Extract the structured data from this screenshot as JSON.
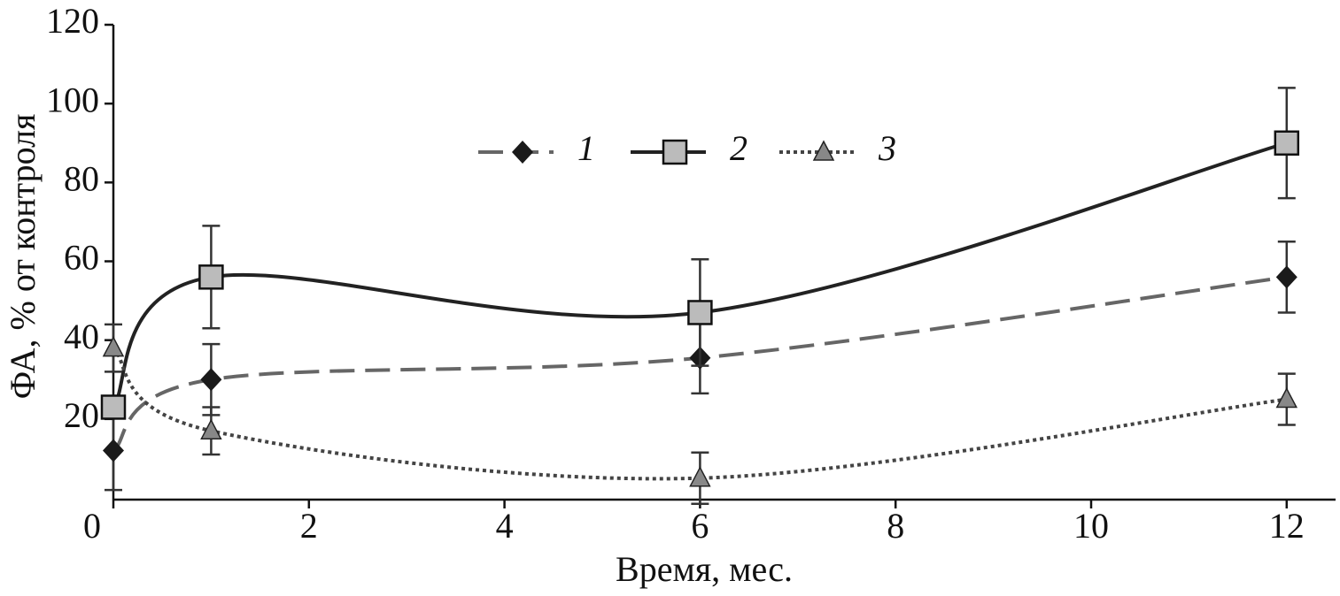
{
  "chart_data": {
    "type": "line",
    "x_label": "Время, мес.",
    "y_label": "ФА, % от контроля",
    "x": [
      0,
      1,
      6,
      12
    ],
    "xlim": [
      0,
      12.5
    ],
    "ylim": [
      0,
      120
    ],
    "xticks": [
      0,
      2,
      4,
      6,
      8,
      10,
      12
    ],
    "yticks": [
      20,
      40,
      60,
      80,
      100,
      120
    ],
    "legend_position": "top",
    "series": [
      {
        "name": "1",
        "color": "#666666",
        "marker_color": "#1a1a1a",
        "marker": "diamond",
        "line_style": "dashed",
        "values": [
          12,
          30,
          35.5,
          56
        ],
        "errors": [
          10,
          9,
          9,
          9
        ]
      },
      {
        "name": "2",
        "color": "#222222",
        "marker_color": "#bbbbbb",
        "marker": "square",
        "line_style": "solid",
        "values": [
          23,
          56,
          47,
          90
        ],
        "errors": [
          null,
          13,
          13.5,
          14
        ]
      },
      {
        "name": "3",
        "color": "#444444",
        "marker_color": "#888888",
        "marker": "triangle",
        "line_style": "dotted",
        "values": [
          38,
          17,
          5,
          25
        ],
        "errors": [
          6,
          6,
          6.5,
          6.5
        ]
      }
    ]
  }
}
